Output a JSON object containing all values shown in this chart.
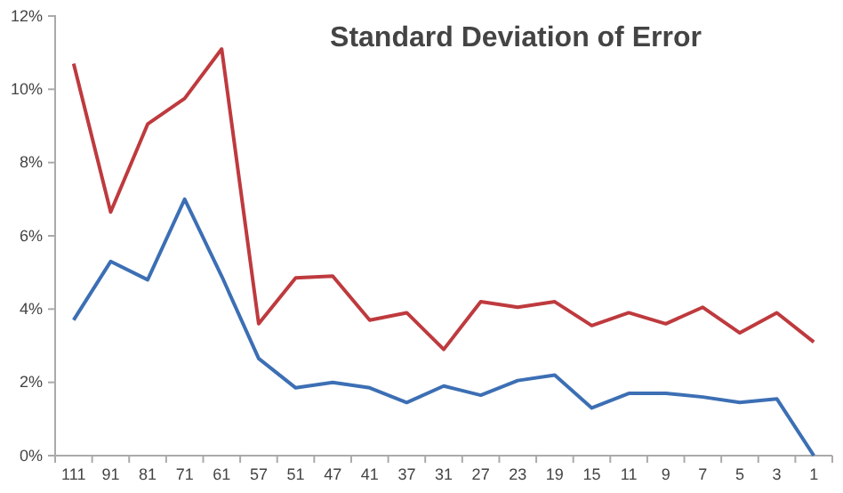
{
  "chart_data": {
    "type": "line",
    "title": "Standard Deviation of Error",
    "categories": [
      "111",
      "91",
      "81",
      "71",
      "61",
      "57",
      "51",
      "47",
      "41",
      "37",
      "31",
      "27",
      "23",
      "19",
      "15",
      "11",
      "9",
      "7",
      "5",
      "3",
      "1"
    ],
    "series": [
      {
        "color": "#be3a3e",
        "values": [
          10.7,
          6.65,
          9.05,
          9.75,
          11.1,
          3.6,
          4.85,
          4.9,
          3.7,
          3.9,
          2.9,
          4.2,
          4.05,
          4.2,
          3.55,
          3.9,
          3.6,
          4.05,
          3.35,
          3.9,
          3.1
        ]
      },
      {
        "color": "#3c6fb4",
        "values": [
          3.7,
          5.3,
          4.8,
          7.0,
          4.9,
          2.65,
          1.85,
          2.0,
          1.85,
          1.45,
          1.9,
          1.65,
          2.05,
          2.2,
          1.3,
          1.7,
          1.7,
          1.6,
          1.45,
          1.55,
          0
        ]
      }
    ],
    "ylim": [
      0,
      12
    ],
    "yticks": [
      {
        "value": 0,
        "label": "0%"
      },
      {
        "value": 2,
        "label": "2%"
      },
      {
        "value": 4,
        "label": "4%"
      },
      {
        "value": 6,
        "label": "6%"
      },
      {
        "value": 8,
        "label": "8%"
      },
      {
        "value": 10,
        "label": "10%"
      },
      {
        "value": 12,
        "label": "12%"
      }
    ],
    "grid": false,
    "marker": "none",
    "line_style": "solid"
  }
}
